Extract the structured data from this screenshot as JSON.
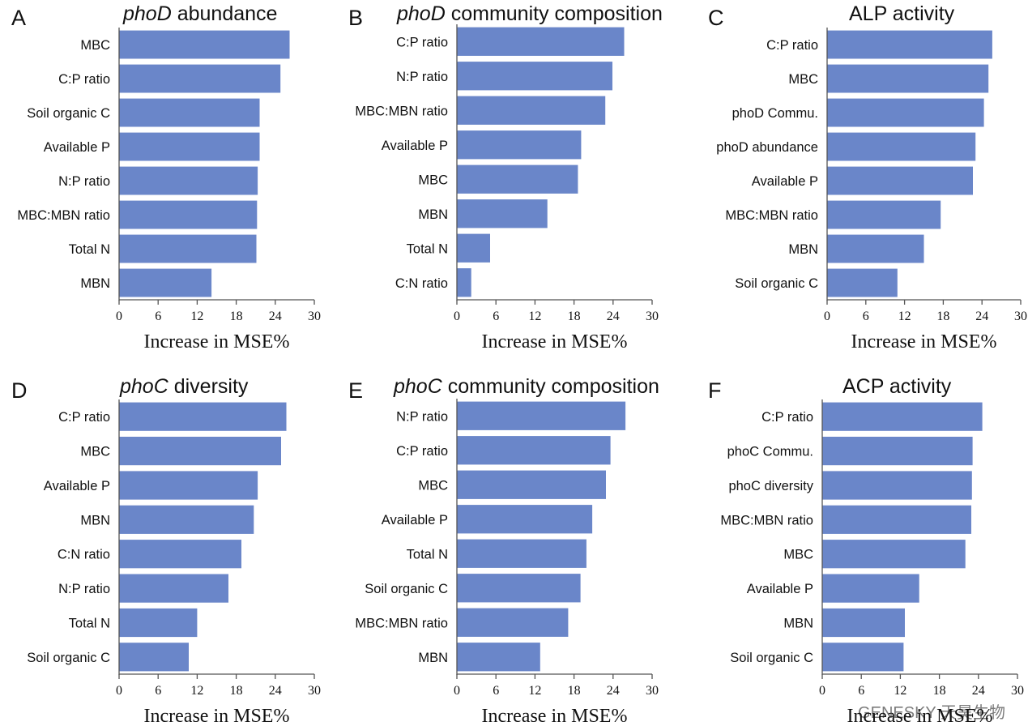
{
  "bar_color": "#6A86C9",
  "watermark": "GENESKY 天昊生物",
  "chart_data": [
    {
      "panel": "A",
      "type": "bar",
      "orientation": "horizontal",
      "title_italic": "phoD",
      "title_rest": " abundance",
      "xlabel": "Increase in MSE%",
      "xlim": [
        0,
        30
      ],
      "xticks": [
        0,
        6,
        12,
        18,
        24,
        30
      ],
      "categories": [
        "MBC",
        "C:P ratio",
        "Soil organic C",
        "Available P",
        "N:P ratio",
        "MBC:MBN ratio",
        "Total N",
        "MBN"
      ],
      "values": [
        26.2,
        24.8,
        21.6,
        21.6,
        21.3,
        21.2,
        21.1,
        14.2
      ]
    },
    {
      "panel": "B",
      "type": "bar",
      "orientation": "horizontal",
      "title_italic": "phoD",
      "title_rest": " community composition",
      "xlabel": "Increase in MSE%",
      "xlim": [
        0,
        30
      ],
      "xticks": [
        0,
        6,
        12,
        18,
        24,
        30
      ],
      "categories": [
        "C:P ratio",
        "N:P ratio",
        "MBC:MBN ratio",
        "Available P",
        "MBC",
        "MBN",
        "Total N",
        "C:N ratio"
      ],
      "values": [
        25.7,
        23.9,
        22.8,
        19.1,
        18.6,
        13.9,
        5.1,
        2.2
      ]
    },
    {
      "panel": "C",
      "type": "bar",
      "orientation": "horizontal",
      "title_italic": "",
      "title_rest": "ALP activity",
      "xlabel": "Increase in MSE%",
      "xlim": [
        0,
        30
      ],
      "xticks": [
        0,
        6,
        12,
        18,
        24,
        30
      ],
      "categories": [
        "C:P ratio",
        "MBC",
        "phoD Commu.",
        "phoD abundance",
        "Available P",
        "MBC:MBN ratio",
        "MBN",
        "Soil organic C"
      ],
      "values": [
        25.6,
        25.0,
        24.3,
        23.0,
        22.6,
        17.6,
        15.0,
        10.9
      ]
    },
    {
      "panel": "D",
      "type": "bar",
      "orientation": "horizontal",
      "title_italic": "phoC",
      "title_rest": " diversity",
      "xlabel": "Increase in MSE%",
      "xlim": [
        0,
        30
      ],
      "xticks": [
        0,
        6,
        12,
        18,
        24,
        30
      ],
      "categories": [
        "C:P ratio",
        "MBC",
        "Available P",
        "MBN",
        "C:N ratio",
        "N:P ratio",
        "Total N",
        "Soil organic C"
      ],
      "values": [
        25.7,
        24.9,
        21.3,
        20.7,
        18.8,
        16.8,
        12.0,
        10.7
      ]
    },
    {
      "panel": "E",
      "type": "bar",
      "orientation": "horizontal",
      "title_italic": "phoC",
      "title_rest": " community composition",
      "xlabel": "Increase in MSE%",
      "xlim": [
        0,
        30
      ],
      "xticks": [
        0,
        6,
        12,
        18,
        24,
        30
      ],
      "categories": [
        "N:P ratio",
        "C:P ratio",
        "MBC",
        "Available P",
        "Total N",
        "Soil organic C",
        "MBC:MBN ratio",
        "MBN"
      ],
      "values": [
        25.9,
        23.6,
        22.9,
        20.8,
        19.9,
        19.0,
        17.1,
        12.8
      ]
    },
    {
      "panel": "F",
      "type": "bar",
      "orientation": "horizontal",
      "title_italic": "",
      "title_rest": "ACP activity",
      "xlabel": "Increase in MSE%",
      "xlim": [
        0,
        30
      ],
      "xticks": [
        0,
        6,
        12,
        18,
        24,
        30
      ],
      "categories": [
        "C:P ratio",
        "phoC Commu.",
        "phoC diversity",
        "MBC:MBN ratio",
        "MBC",
        "Available P",
        "MBN",
        "Soil organic C"
      ],
      "values": [
        24.6,
        23.1,
        23.0,
        22.9,
        22.0,
        14.9,
        12.7,
        12.5
      ]
    }
  ]
}
